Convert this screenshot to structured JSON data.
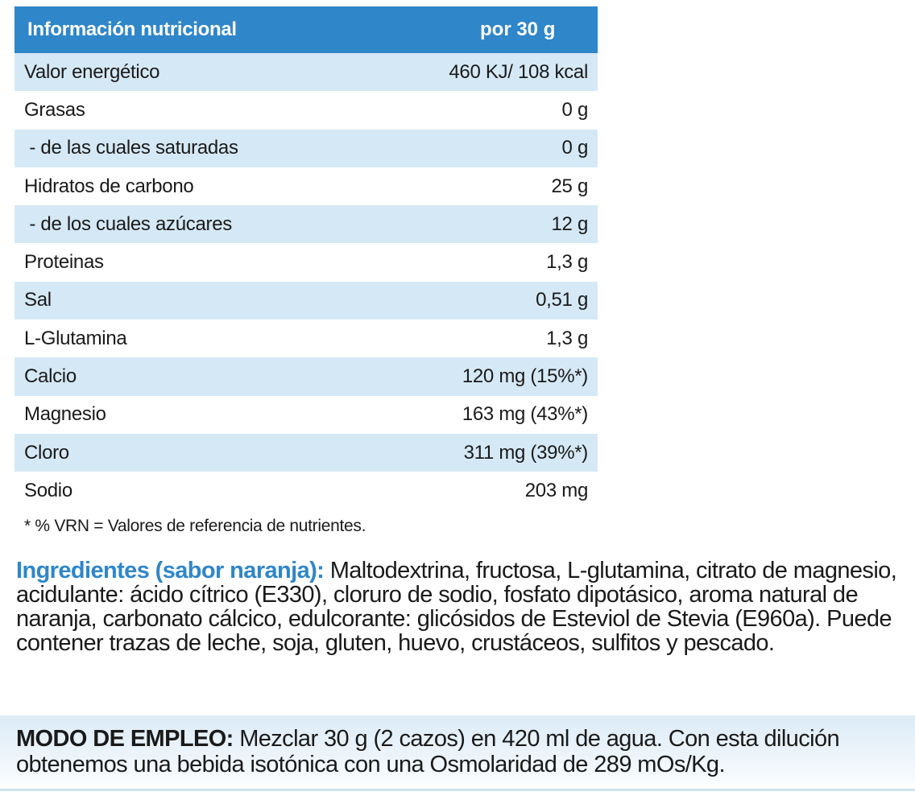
{
  "nutrition_table": {
    "header_label": "Información nutricional",
    "header_value": "por 30 g",
    "rows": [
      {
        "label": "Valor energético",
        "value": "460 KJ/ 108 kcal"
      },
      {
        "label": "Grasas",
        "value": "0 g"
      },
      {
        "label": " - de las cuales saturadas",
        "value": "0 g"
      },
      {
        "label": "Hidratos de carbono",
        "value": "25 g"
      },
      {
        "label": " - de los cuales azúcares",
        "value": "12 g"
      },
      {
        "label": "Proteinas",
        "value": "1,3 g"
      },
      {
        "label": "Sal",
        "value": "0,51 g"
      },
      {
        "label": "L-Glutamina",
        "value": "1,3 g"
      },
      {
        "label": "Calcio",
        "value": "120 mg (15%*)"
      },
      {
        "label": "Magnesio",
        "value": "163 mg (43%*)"
      },
      {
        "label": "Cloro",
        "value": "311 mg (39%*)"
      },
      {
        "label": "Sodio",
        "value": "203 mg"
      }
    ],
    "footnote": "* % VRN = Valores de referencia de nutrientes."
  },
  "ingredients": {
    "title": "Ingredientes (sabor naranja):",
    "text": " Maltodextrina, fructosa, L-glutamina, citrato de magnesio, acidulante: ácido cítrico (E330), cloruro de sodio, fosfato dipotásico, aroma natural de naranja, carbonato cálcico, edulcorante: glicósidos de Esteviol de Stevia (E960a). Puede contener trazas de leche, soja, gluten, huevo, crustáceos, sulfitos y pescado."
  },
  "usage": {
    "title": "MODO DE EMPLEO:",
    "text": " Mezclar 30 g (2 cazos) en 420 ml de agua. Con esta dilución obtenemos una bebida isotónica con una Osmolaridad de 289 mOs/Kg."
  },
  "colors": {
    "header_blue": "#2f86c9",
    "row_alt_blue": "#d5e8f6",
    "ingredients_title_blue": "#2f86c9"
  }
}
